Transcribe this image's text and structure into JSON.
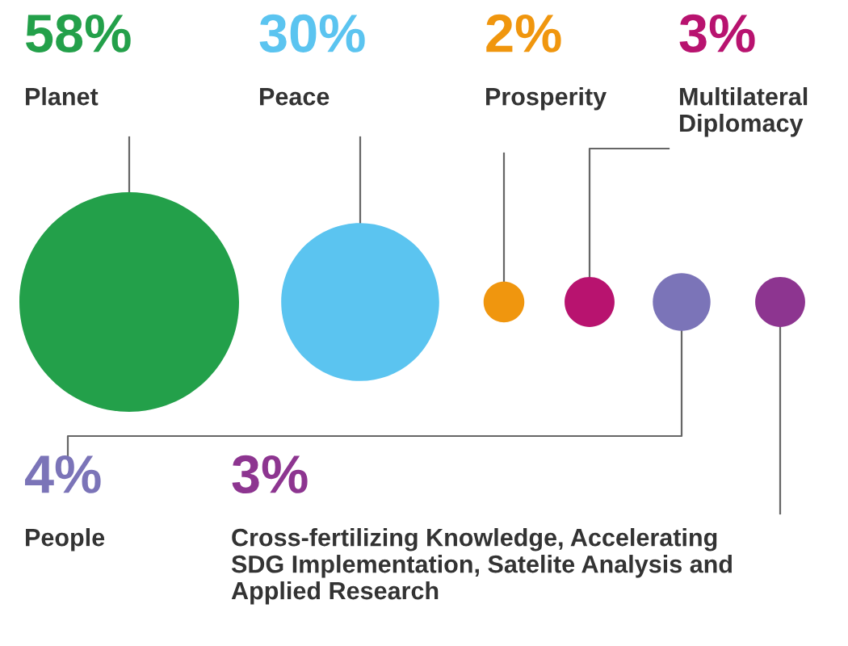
{
  "chart_data": {
    "type": "other",
    "categories": [
      "Planet",
      "Peace",
      "Prosperity",
      "Multilateral\nDiplomacy",
      "People",
      "Cross-fertilizing Knowledge, Accelerating\nSDG Implementation, Satelite Analysis and\nApplied Research"
    ],
    "values": [
      58,
      30,
      2,
      3,
      4,
      3
    ],
    "value_labels": [
      "58%",
      "30%",
      "2%",
      "3%",
      "4%",
      "3%"
    ],
    "colors": [
      "#23a04a",
      "#5bc4f0",
      "#f0960e",
      "#b8136f",
      "#7b74b8",
      "#8d3590"
    ]
  }
}
